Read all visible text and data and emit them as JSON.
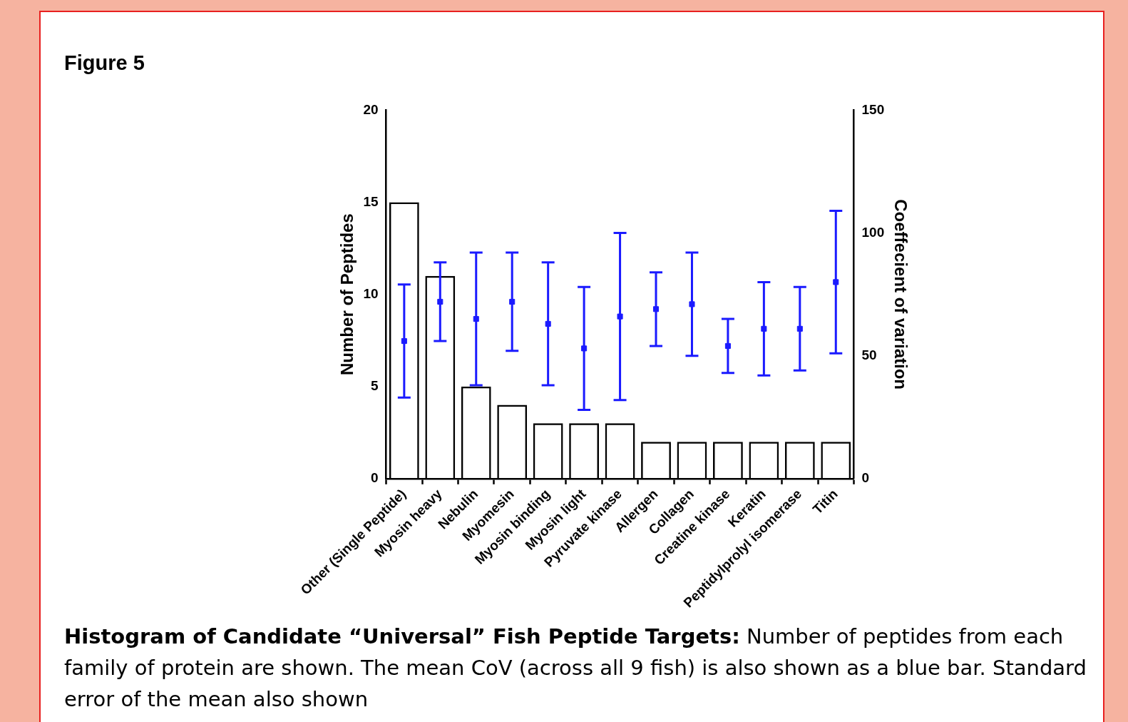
{
  "chart_data": {
    "type": "bar",
    "title": "Figure 5",
    "ylabel": "Number of Peptides",
    "y2label": "Coeffecient of variation",
    "categories": [
      "Other (Single Peptide)",
      "Myosin heavy",
      "Nebulin",
      "Myomesin",
      "Myosin binding",
      "Myosin light",
      "Pyruvate kinase",
      "Allergen",
      "Collagen",
      "Creatine kinase",
      "Keratin",
      "Peptidylprolyl isomerase",
      "Titin"
    ],
    "series": [
      {
        "type": "bar",
        "color": "#000000",
        "values": [
          15,
          11,
          5,
          4,
          3,
          3,
          3,
          2,
          2,
          2,
          2,
          2,
          2
        ]
      },
      {
        "type": "scatter",
        "axis": "y2",
        "color": "#1a1aff",
        "x": [
          "Other (Single Peptide)",
          "Myosin heavy",
          "Nebulin",
          "Myomesin",
          "Myosin binding",
          "Myosin light",
          "Pyruvate kinase",
          "Allergen",
          "Collagen",
          "Creatine kinase",
          "Keratin",
          "Peptidylprolyl isomerase",
          "Titin"
        ],
        "values": [
          56,
          72,
          65,
          72,
          63,
          53,
          66,
          69,
          71,
          54,
          61,
          61,
          80
        ],
        "errors": [
          23,
          16,
          27,
          20,
          25,
          25,
          34,
          15,
          21,
          11,
          19,
          17,
          29
        ]
      }
    ],
    "ylim": [
      0,
      20
    ],
    "yticks": [
      0,
      5,
      10,
      15,
      20
    ],
    "y2lim": [
      0,
      150
    ],
    "y2ticks": [
      0,
      50,
      100,
      150
    ],
    "grid": false,
    "marker": "square",
    "legend": false,
    "annotations": [
      "Histogram of Candidate “Universal” Fish Peptide Targets:",
      "Number of peptides from each family of protein are shown. The  mean CoV (across all 9 fish) is also shown as a blue bar. Standard error of the mean also shown"
    ]
  }
}
